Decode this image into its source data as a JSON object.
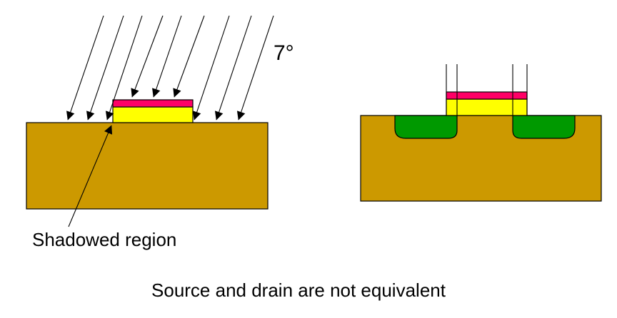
{
  "title": "Source and drain are not equivalent",
  "angle_label": "7°",
  "shadow_label": "Shadowed region",
  "colors": {
    "substrate": "#cc9900",
    "oxide": "#ffff00",
    "gate_cap": "#ff0066",
    "doped": "#009900",
    "stroke": "#000000",
    "background": "#ffffff"
  }
}
